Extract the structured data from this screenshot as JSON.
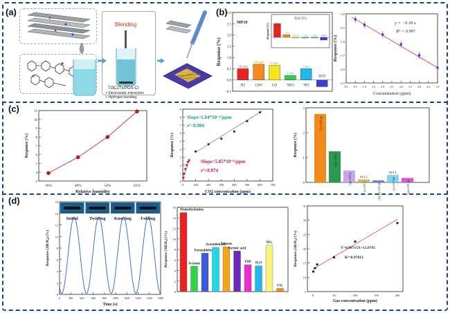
{
  "panels": {
    "a": "(a)",
    "b": "(b)",
    "c": "(c)",
    "d": "(d)"
  },
  "a": {
    "blending": "Blending",
    "material": "Ti3C2Tx/PDS-Cl",
    "bullet1": "Electrostatic interaction",
    "bullet2": "Hydrogen bonding"
  },
  "b": {
    "ylabel": "Response (%)",
    "tag": "MP10",
    "inset_title": "Ti3C2Tx",
    "inset_ylabel": "Response (%)",
    "bars": [
      {
        "label": "H2",
        "conc": "100 ppm",
        "value": 0.5,
        "color": "#e8231f"
      },
      {
        "label": "CH4",
        "conc": "500 ppm",
        "value": 0.7,
        "color": "#f28a1c"
      },
      {
        "label": "CO",
        "conc": "10 ppm",
        "value": 0.65,
        "color": "#f7e61d"
      },
      {
        "label": "NH3",
        "conc": "1 ppm",
        "value": 0.2,
        "color": "#2fd34a"
      },
      {
        "label": "NO",
        "conc": "1 ppm",
        "value": 0.5,
        "color": "#1fb8e8"
      },
      {
        "label": "H2S",
        "conc": "",
        "value": -0.3,
        "color": "#3b3bd8"
      }
    ],
    "inset_bars": [
      {
        "conc": "",
        "value": 0.1,
        "color": "#e8231f"
      },
      {
        "conc": "1 ppm",
        "value": 0.02,
        "color": "#f28a1c"
      },
      {
        "conc": "10 ppm",
        "value": 0.0,
        "color": "#f7e61d"
      },
      {
        "conc": "1 ppm",
        "value": 0.0,
        "color": "#2fd34a"
      },
      {
        "conc": "1 ppm",
        "value": 0.0,
        "color": "#1fb8e8"
      },
      {
        "conc": "1 ppm",
        "value": -0.02,
        "color": "#3b3bd8"
      }
    ],
    "yticks": [
      "-0.5",
      "0.0",
      "0.5",
      "1.0",
      "1.5",
      "2.0",
      "2.5",
      "3.0"
    ]
  },
  "b2": {
    "xlabel": "Concentration (ppm)",
    "ylabel": "Response (%)",
    "equation": "y = −0.39 x",
    "r2": "R² = 0.997",
    "xticks": [
      "0.0",
      "0.5",
      "1.0",
      "1.5",
      "2.0",
      "2.5",
      "3.0",
      "3.5",
      "4.0",
      "4.5",
      "5.0"
    ],
    "yticks": [
      "0.0",
      "-0.5",
      "-1.0",
      "-1.5",
      "-2.0",
      "-2.5"
    ]
  },
  "c1": {
    "xlabel": "Relative humidity",
    "ylabel": "Response (%)",
    "xticks": [
      "36%",
      "48%",
      "54%",
      "62%"
    ],
    "yticks": [
      "3",
      "4",
      "5",
      "6",
      "7",
      "8",
      "9",
      "10",
      "11"
    ]
  },
  "c2": {
    "xlabel": "CO2 concentration (ppm)",
    "ylabel": "Response (%)",
    "slope1": "Slope=1.04*10⁻²/ppm",
    "r1": "r²=0.984",
    "slope2": "Slope=5.85*10⁻²/ppm",
    "r2": "r²=0.974",
    "xticks": [
      "0",
      "100",
      "200",
      "300",
      "400",
      "500",
      "600",
      "700"
    ],
    "yticks": [
      "0",
      "1",
      "2",
      "3",
      "4",
      "5",
      "6",
      "7",
      "8",
      "9"
    ]
  },
  "c3": {
    "ylabel": "Response (%)",
    "yticks": [
      "0",
      "1",
      "2",
      "3"
    ],
    "bars": [
      {
        "label": "40 ppm CO₂",
        "value": 2.75,
        "color": "#f28a1c"
      },
      {
        "label": "8 ppm NH₃",
        "value": 1.25,
        "color": "#2a9a4e"
      },
      {
        "label": "8 ppm NO₂",
        "value": 0.48,
        "color": "#c9a6e8"
      },
      {
        "label": "8 ppm H₂",
        "value": 0.12,
        "color": "#c7b56a"
      },
      {
        "label": "40 ppm HCHO",
        "value": 0.08,
        "color": "#6a7bd8"
      },
      {
        "label": "40 ppm CO",
        "value": 0.3,
        "color": "#7fd3f0"
      },
      {
        "label": "40 ppm NH₃",
        "value": 0.18,
        "color": "#d85ac8"
      }
    ],
    "null_label": "NULL"
  },
  "d1": {
    "xlabel": "Time (s)",
    "ylabel": "Response (ΔR/R₀) (%)",
    "states": [
      "Initial",
      "Twisting",
      "Knotting",
      "Folding"
    ],
    "xticks": [
      "0",
      "200",
      "400",
      "600",
      "800",
      "1000",
      "1200",
      "1400",
      "1600",
      "1800"
    ],
    "yticks": [
      "0",
      "2",
      "4",
      "6",
      "8",
      "10",
      "12",
      "14",
      "16"
    ]
  },
  "d2": {
    "ylabel": "Response (ΔR/R₀) (%)",
    "yticks": [
      "0",
      "2",
      "4",
      "6",
      "8",
      "10",
      "12",
      "14",
      "16"
    ],
    "bars": [
      {
        "label": "Trimethylamine",
        "value": 15,
        "color": "#e8231f"
      },
      {
        "label": "Acetone",
        "value": 4.8,
        "color": "#2fd34a"
      },
      {
        "label": "Formaldehyde",
        "value": 7.3,
        "color": "#3b5bd8"
      },
      {
        "label": "Acetaldehyde",
        "value": 8.4,
        "color": "#1fd8e8"
      },
      {
        "label": "Toluene",
        "value": 8.5,
        "color": "#f2a51c"
      },
      {
        "label": "Formic acid",
        "value": 7.7,
        "color": "#6a2bb8"
      },
      {
        "label": "THF",
        "value": 5.1,
        "color": "#ec2bd0"
      },
      {
        "label": "H₂O",
        "value": 4.9,
        "color": "#1fb8e8"
      },
      {
        "label": "NO₂",
        "value": 8.8,
        "color": "#f7f27a"
      },
      {
        "label": "CO₂",
        "value": 0.6,
        "color": "#f28a1c"
      }
    ]
  },
  "d3": {
    "xlabel": "Gas concentration (ppm)",
    "ylabel": "Response (ΔR/R₀) (%)",
    "equation": "Y=0.08715X+12.8795",
    "r2": "R²=0.97813",
    "xticks": [
      "0",
      "50",
      "100",
      "150",
      "200"
    ],
    "yticks": [
      "5",
      "10",
      "15",
      "20",
      "25",
      "30",
      "35"
    ]
  },
  "chart_data": [
    {
      "type": "bar",
      "title": "",
      "ylabel": "Response (%)",
      "categories": [
        "H2",
        "CH4",
        "CO",
        "NH3",
        "NO",
        "H2S"
      ],
      "values": [
        0.5,
        0.7,
        0.65,
        0.2,
        0.5,
        -0.3
      ],
      "ylim": [
        -0.5,
        3.0
      ]
    },
    {
      "type": "scatter",
      "xlabel": "Concentration (ppm)",
      "ylabel": "Response (%)",
      "x": [
        0.5,
        1.0,
        2.0,
        3.0,
        4.0,
        5.0
      ],
      "y": [
        -0.2,
        -0.4,
        -0.75,
        -1.1,
        -1.5,
        -1.95
      ],
      "xlim": [
        0,
        5.0
      ],
      "ylim": [
        -2.5,
        0
      ]
    },
    {
      "type": "line",
      "xlabel": "Relative humidity",
      "ylabel": "Response (%)",
      "categories": [
        "36%",
        "48%",
        "54%",
        "62%"
      ],
      "values": [
        3.9,
        5.7,
        8.0,
        10.9
      ],
      "ylim": [
        3,
        11
      ]
    },
    {
      "type": "scatter",
      "xlabel": "CO2 concentration (ppm)",
      "ylabel": "Response (%)",
      "series": [
        {
          "x": [
            5,
            10,
            20,
            30,
            40,
            50
          ],
          "y": [
            0.4,
            0.9,
            1.5,
            2.0,
            2.4,
            2.6
          ]
        },
        {
          "x": [
            100,
            200,
            300,
            400,
            500,
            600
          ],
          "y": [
            3.7,
            4.6,
            5.3,
            6.2,
            7.5,
            8.6
          ]
        }
      ],
      "xlim": [
        0,
        700
      ],
      "ylim": [
        0,
        9
      ]
    },
    {
      "type": "bar",
      "ylabel": "Response (%)",
      "categories": [
        "40 ppm CO₂",
        "8 ppm NH₃",
        "8 ppm NO₂",
        "8 ppm H₂",
        "40 ppm HCHO",
        "40 ppm CO",
        "40 ppm NH₃"
      ],
      "values": [
        2.75,
        1.25,
        0.48,
        0.12,
        0.08,
        0.3,
        0.18
      ],
      "ylim": [
        0,
        3
      ]
    },
    {
      "type": "line",
      "xlabel": "Time (s)",
      "ylabel": "Response (ΔR/R₀) (%)",
      "xlim": [
        0,
        1800
      ],
      "ylim": [
        0,
        16
      ],
      "note": "four periodic cycles peaking at ~13.5"
    },
    {
      "type": "bar",
      "ylabel": "Response (ΔR/R₀) (%)",
      "categories": [
        "Trimethylamine",
        "Acetone",
        "Formaldehyde",
        "Acetaldehyde",
        "Toluene",
        "Formic acid",
        "THF",
        "H₂O",
        "NO₂",
        "CO₂"
      ],
      "values": [
        15,
        4.8,
        7.3,
        8.4,
        8.5,
        7.7,
        5.1,
        4.9,
        8.8,
        0.6
      ],
      "ylim": [
        0,
        16
      ]
    },
    {
      "type": "scatter",
      "xlabel": "Gas concentration (ppm)",
      "ylabel": "Response (ΔR/R₀) (%)",
      "x": [
        1,
        5,
        10,
        50,
        100,
        200
      ],
      "y": [
        12.0,
        13.2,
        14.5,
        17.0,
        22.5,
        29.0
      ],
      "xlim": [
        0,
        200
      ],
      "ylim": [
        5,
        35
      ]
    }
  ]
}
